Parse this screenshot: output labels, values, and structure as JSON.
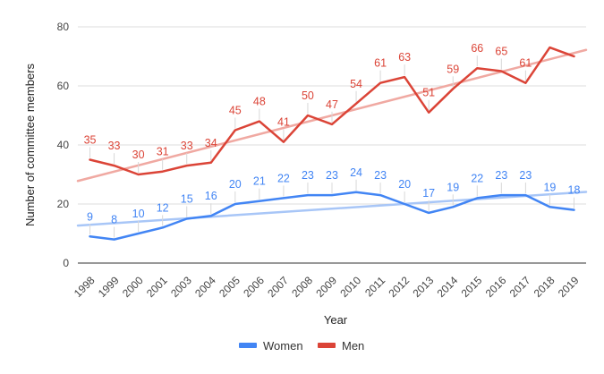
{
  "chart_data": {
    "type": "line",
    "x": [
      "1998",
      "1999",
      "2000",
      "2001",
      "2003",
      "2004",
      "2005",
      "2006",
      "2007",
      "2008",
      "2009",
      "2010",
      "2011",
      "2012",
      "2013",
      "2014",
      "2015",
      "2016",
      "2017",
      "2018",
      "2019"
    ],
    "xlabel": "Year",
    "ylabel": "Number of committee members",
    "ylim": [
      0,
      80
    ],
    "yticks": [
      0,
      20,
      40,
      60,
      80
    ],
    "grid": true,
    "legend_position": "bottom",
    "series": [
      {
        "name": "Women",
        "color": "#4285f4",
        "trend_color": "#a8c6f7",
        "values": [
          9,
          8,
          10,
          12,
          15,
          16,
          20,
          21,
          22,
          23,
          23,
          24,
          23,
          20,
          17,
          19,
          22,
          23,
          23,
          19,
          18
        ],
        "labels_shown": [
          true,
          true,
          true,
          true,
          true,
          true,
          true,
          true,
          true,
          true,
          true,
          true,
          true,
          true,
          true,
          true,
          true,
          true,
          true,
          true,
          true
        ],
        "trendline": [
          12.7,
          24.1
        ]
      },
      {
        "name": "Men",
        "color": "#db4437",
        "trend_color": "#f0a9a2",
        "values": [
          35,
          33,
          30,
          31,
          33,
          34,
          45,
          48,
          41,
          50,
          47,
          54,
          61,
          63,
          51,
          59,
          66,
          65,
          61,
          73,
          70
        ],
        "labels_shown": [
          true,
          true,
          true,
          true,
          true,
          true,
          true,
          true,
          true,
          true,
          true,
          true,
          true,
          true,
          true,
          true,
          true,
          true,
          true,
          false,
          false
        ],
        "trendline": [
          27.8,
          72.2
        ]
      }
    ]
  }
}
